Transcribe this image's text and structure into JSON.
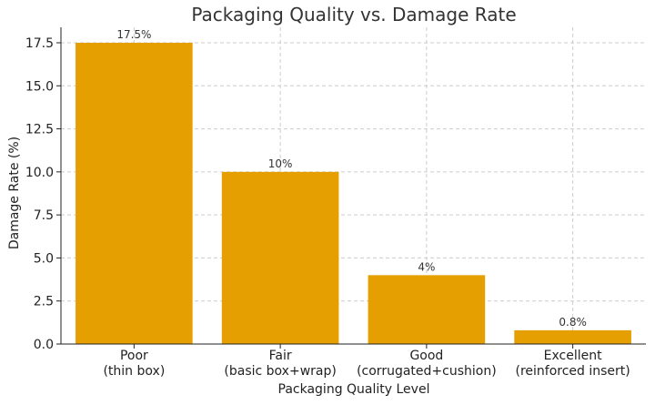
{
  "chart_data": {
    "type": "bar",
    "title": "Packaging Quality vs. Damage Rate",
    "xlabel": "Packaging Quality Level",
    "ylabel": "Damage Rate (%)",
    "categories": [
      [
        "Poor",
        "(thin box)"
      ],
      [
        "Fair",
        "(basic box+wrap)"
      ],
      [
        "Good",
        "(corrugated+cushion)"
      ],
      [
        "Excellent",
        "(reinforced insert)"
      ]
    ],
    "values": [
      17.5,
      10,
      4,
      0.8
    ],
    "data_labels": [
      "17.5%",
      "10%",
      "4%",
      "0.8%"
    ],
    "ylim": [
      0,
      17.5
    ],
    "yticks": [
      0,
      2.5,
      5,
      7.5,
      10,
      12.5,
      15,
      17.5
    ],
    "ytick_labels": [
      "0.0",
      "2.5",
      "5.0",
      "7.5",
      "10.0",
      "12.5",
      "15.0",
      "17.5"
    ],
    "grid": true,
    "bar_color": "#E59F00"
  }
}
